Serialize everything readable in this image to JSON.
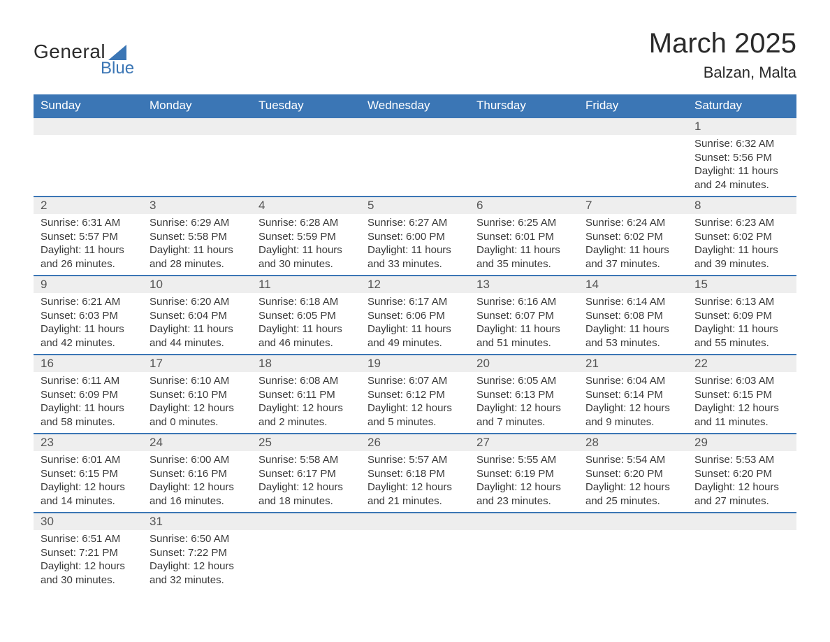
{
  "logo": {
    "text_general": "General",
    "text_blue": "Blue",
    "sail_color": "#3b76b5"
  },
  "title": "March 2025",
  "location": "Balzan, Malta",
  "colors": {
    "header_bg": "#3b76b5",
    "header_text": "#ffffff",
    "daynum_bg": "#eeeeee",
    "row_border": "#3b76b5",
    "body_text": "#3a3a3a"
  },
  "typography": {
    "title_fontsize": 40,
    "location_fontsize": 22,
    "header_fontsize": 17,
    "daynum_fontsize": 17,
    "body_fontsize": 15
  },
  "weekdays": [
    "Sunday",
    "Monday",
    "Tuesday",
    "Wednesday",
    "Thursday",
    "Friday",
    "Saturday"
  ],
  "weeks": [
    [
      {
        "n": "",
        "sunrise": "",
        "sunset": "",
        "daylight": ""
      },
      {
        "n": "",
        "sunrise": "",
        "sunset": "",
        "daylight": ""
      },
      {
        "n": "",
        "sunrise": "",
        "sunset": "",
        "daylight": ""
      },
      {
        "n": "",
        "sunrise": "",
        "sunset": "",
        "daylight": ""
      },
      {
        "n": "",
        "sunrise": "",
        "sunset": "",
        "daylight": ""
      },
      {
        "n": "",
        "sunrise": "",
        "sunset": "",
        "daylight": ""
      },
      {
        "n": "1",
        "sunrise": "Sunrise: 6:32 AM",
        "sunset": "Sunset: 5:56 PM",
        "daylight": "Daylight: 11 hours and 24 minutes."
      }
    ],
    [
      {
        "n": "2",
        "sunrise": "Sunrise: 6:31 AM",
        "sunset": "Sunset: 5:57 PM",
        "daylight": "Daylight: 11 hours and 26 minutes."
      },
      {
        "n": "3",
        "sunrise": "Sunrise: 6:29 AM",
        "sunset": "Sunset: 5:58 PM",
        "daylight": "Daylight: 11 hours and 28 minutes."
      },
      {
        "n": "4",
        "sunrise": "Sunrise: 6:28 AM",
        "sunset": "Sunset: 5:59 PM",
        "daylight": "Daylight: 11 hours and 30 minutes."
      },
      {
        "n": "5",
        "sunrise": "Sunrise: 6:27 AM",
        "sunset": "Sunset: 6:00 PM",
        "daylight": "Daylight: 11 hours and 33 minutes."
      },
      {
        "n": "6",
        "sunrise": "Sunrise: 6:25 AM",
        "sunset": "Sunset: 6:01 PM",
        "daylight": "Daylight: 11 hours and 35 minutes."
      },
      {
        "n": "7",
        "sunrise": "Sunrise: 6:24 AM",
        "sunset": "Sunset: 6:02 PM",
        "daylight": "Daylight: 11 hours and 37 minutes."
      },
      {
        "n": "8",
        "sunrise": "Sunrise: 6:23 AM",
        "sunset": "Sunset: 6:02 PM",
        "daylight": "Daylight: 11 hours and 39 minutes."
      }
    ],
    [
      {
        "n": "9",
        "sunrise": "Sunrise: 6:21 AM",
        "sunset": "Sunset: 6:03 PM",
        "daylight": "Daylight: 11 hours and 42 minutes."
      },
      {
        "n": "10",
        "sunrise": "Sunrise: 6:20 AM",
        "sunset": "Sunset: 6:04 PM",
        "daylight": "Daylight: 11 hours and 44 minutes."
      },
      {
        "n": "11",
        "sunrise": "Sunrise: 6:18 AM",
        "sunset": "Sunset: 6:05 PM",
        "daylight": "Daylight: 11 hours and 46 minutes."
      },
      {
        "n": "12",
        "sunrise": "Sunrise: 6:17 AM",
        "sunset": "Sunset: 6:06 PM",
        "daylight": "Daylight: 11 hours and 49 minutes."
      },
      {
        "n": "13",
        "sunrise": "Sunrise: 6:16 AM",
        "sunset": "Sunset: 6:07 PM",
        "daylight": "Daylight: 11 hours and 51 minutes."
      },
      {
        "n": "14",
        "sunrise": "Sunrise: 6:14 AM",
        "sunset": "Sunset: 6:08 PM",
        "daylight": "Daylight: 11 hours and 53 minutes."
      },
      {
        "n": "15",
        "sunrise": "Sunrise: 6:13 AM",
        "sunset": "Sunset: 6:09 PM",
        "daylight": "Daylight: 11 hours and 55 minutes."
      }
    ],
    [
      {
        "n": "16",
        "sunrise": "Sunrise: 6:11 AM",
        "sunset": "Sunset: 6:09 PM",
        "daylight": "Daylight: 11 hours and 58 minutes."
      },
      {
        "n": "17",
        "sunrise": "Sunrise: 6:10 AM",
        "sunset": "Sunset: 6:10 PM",
        "daylight": "Daylight: 12 hours and 0 minutes."
      },
      {
        "n": "18",
        "sunrise": "Sunrise: 6:08 AM",
        "sunset": "Sunset: 6:11 PM",
        "daylight": "Daylight: 12 hours and 2 minutes."
      },
      {
        "n": "19",
        "sunrise": "Sunrise: 6:07 AM",
        "sunset": "Sunset: 6:12 PM",
        "daylight": "Daylight: 12 hours and 5 minutes."
      },
      {
        "n": "20",
        "sunrise": "Sunrise: 6:05 AM",
        "sunset": "Sunset: 6:13 PM",
        "daylight": "Daylight: 12 hours and 7 minutes."
      },
      {
        "n": "21",
        "sunrise": "Sunrise: 6:04 AM",
        "sunset": "Sunset: 6:14 PM",
        "daylight": "Daylight: 12 hours and 9 minutes."
      },
      {
        "n": "22",
        "sunrise": "Sunrise: 6:03 AM",
        "sunset": "Sunset: 6:15 PM",
        "daylight": "Daylight: 12 hours and 11 minutes."
      }
    ],
    [
      {
        "n": "23",
        "sunrise": "Sunrise: 6:01 AM",
        "sunset": "Sunset: 6:15 PM",
        "daylight": "Daylight: 12 hours and 14 minutes."
      },
      {
        "n": "24",
        "sunrise": "Sunrise: 6:00 AM",
        "sunset": "Sunset: 6:16 PM",
        "daylight": "Daylight: 12 hours and 16 minutes."
      },
      {
        "n": "25",
        "sunrise": "Sunrise: 5:58 AM",
        "sunset": "Sunset: 6:17 PM",
        "daylight": "Daylight: 12 hours and 18 minutes."
      },
      {
        "n": "26",
        "sunrise": "Sunrise: 5:57 AM",
        "sunset": "Sunset: 6:18 PM",
        "daylight": "Daylight: 12 hours and 21 minutes."
      },
      {
        "n": "27",
        "sunrise": "Sunrise: 5:55 AM",
        "sunset": "Sunset: 6:19 PM",
        "daylight": "Daylight: 12 hours and 23 minutes."
      },
      {
        "n": "28",
        "sunrise": "Sunrise: 5:54 AM",
        "sunset": "Sunset: 6:20 PM",
        "daylight": "Daylight: 12 hours and 25 minutes."
      },
      {
        "n": "29",
        "sunrise": "Sunrise: 5:53 AM",
        "sunset": "Sunset: 6:20 PM",
        "daylight": "Daylight: 12 hours and 27 minutes."
      }
    ],
    [
      {
        "n": "30",
        "sunrise": "Sunrise: 6:51 AM",
        "sunset": "Sunset: 7:21 PM",
        "daylight": "Daylight: 12 hours and 30 minutes."
      },
      {
        "n": "31",
        "sunrise": "Sunrise: 6:50 AM",
        "sunset": "Sunset: 7:22 PM",
        "daylight": "Daylight: 12 hours and 32 minutes."
      },
      {
        "n": "",
        "sunrise": "",
        "sunset": "",
        "daylight": ""
      },
      {
        "n": "",
        "sunrise": "",
        "sunset": "",
        "daylight": ""
      },
      {
        "n": "",
        "sunrise": "",
        "sunset": "",
        "daylight": ""
      },
      {
        "n": "",
        "sunrise": "",
        "sunset": "",
        "daylight": ""
      },
      {
        "n": "",
        "sunrise": "",
        "sunset": "",
        "daylight": ""
      }
    ]
  ]
}
